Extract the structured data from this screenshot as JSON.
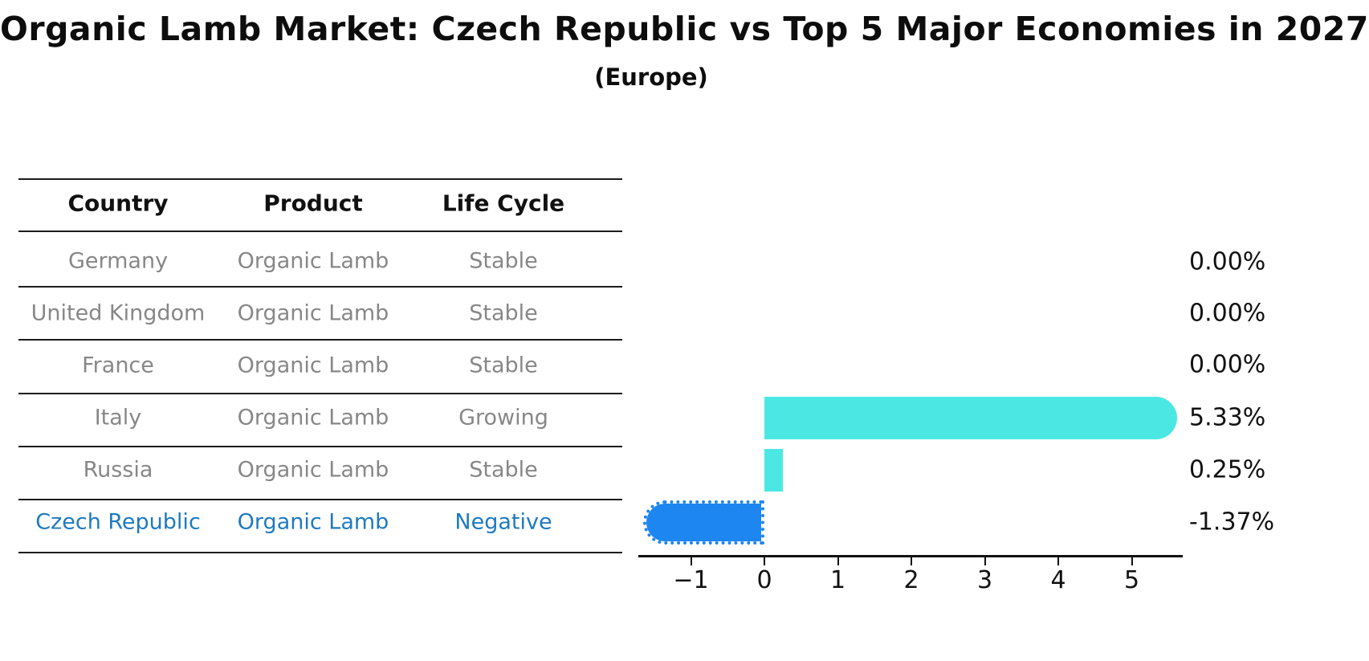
{
  "title": "Organic Lamb Market: Czech Republic vs Top 5 Major Economies in 2027",
  "subtitle": "(Europe)",
  "table": {
    "headers": [
      "Country",
      "Product",
      "Life Cycle"
    ],
    "rows": [
      {
        "country": "Germany",
        "product": "Organic Lamb",
        "life_cycle": "Stable",
        "highlight": false
      },
      {
        "country": "United Kingdom",
        "product": "Organic Lamb",
        "life_cycle": "Stable",
        "highlight": false
      },
      {
        "country": "France",
        "product": "Organic Lamb",
        "life_cycle": "Stable",
        "highlight": false
      },
      {
        "country": "Italy",
        "product": "Organic Lamb",
        "life_cycle": "Growing",
        "highlight": false
      },
      {
        "country": "Russia",
        "product": "Organic Lamb",
        "life_cycle": "Stable",
        "highlight": false
      },
      {
        "country": "Czech Republic",
        "product": "Organic Lamb",
        "life_cycle": "Negative",
        "highlight": true
      }
    ]
  },
  "chart_data": {
    "type": "bar",
    "orientation": "horizontal",
    "title": "Organic Lamb Market: Czech Republic vs Top 5 Major Economies in 2027 (Europe)",
    "categories": [
      "Germany",
      "United Kingdom",
      "France",
      "Italy",
      "Russia",
      "Czech Republic"
    ],
    "values": [
      0.0,
      0.0,
      0.0,
      5.33,
      0.25,
      -1.37
    ],
    "value_labels": [
      "0.00%",
      "0.00%",
      "0.00%",
      "5.33%",
      "0.25%",
      "-1.37%"
    ],
    "x_ticks": [
      "−1",
      "0",
      "1",
      "2",
      "3",
      "4",
      "5"
    ],
    "xlim": [
      -1.72,
      5.7
    ],
    "grid": false,
    "legend": "none",
    "colors": {
      "positive_bar": "#4be8e3",
      "negative_bar": "#1e86f0",
      "highlight_text": "#1f7ac0",
      "table_text": "#878787",
      "header_text": "#111111"
    }
  }
}
